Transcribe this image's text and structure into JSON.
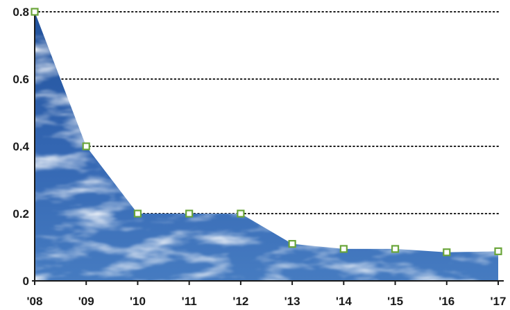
{
  "chart_data": {
    "type": "area",
    "title": "",
    "xlabel": "",
    "ylabel": "",
    "categories": [
      "'08",
      "'09",
      "'10",
      "'11",
      "'12",
      "'13",
      "'14",
      "'15",
      "'16",
      "'17"
    ],
    "values": [
      0.8,
      0.4,
      0.2,
      0.2,
      0.2,
      0.11,
      0.095,
      0.095,
      0.085,
      0.088
    ],
    "ylim": [
      0,
      0.8
    ],
    "yticks": [
      0,
      0.2,
      0.4,
      0.6,
      0.8
    ],
    "ytick_labels": [
      "0",
      "0.2",
      "0.4",
      "0.6",
      "0.8"
    ],
    "grid": "horizontal dotted",
    "legend": "none",
    "fill_style": "sky-with-clouds texture",
    "colors": {
      "area_fill": "#2f5ea8",
      "marker": "#6aa53a",
      "grid": "#1a1a1a",
      "axis": "#1a1a1a"
    }
  }
}
